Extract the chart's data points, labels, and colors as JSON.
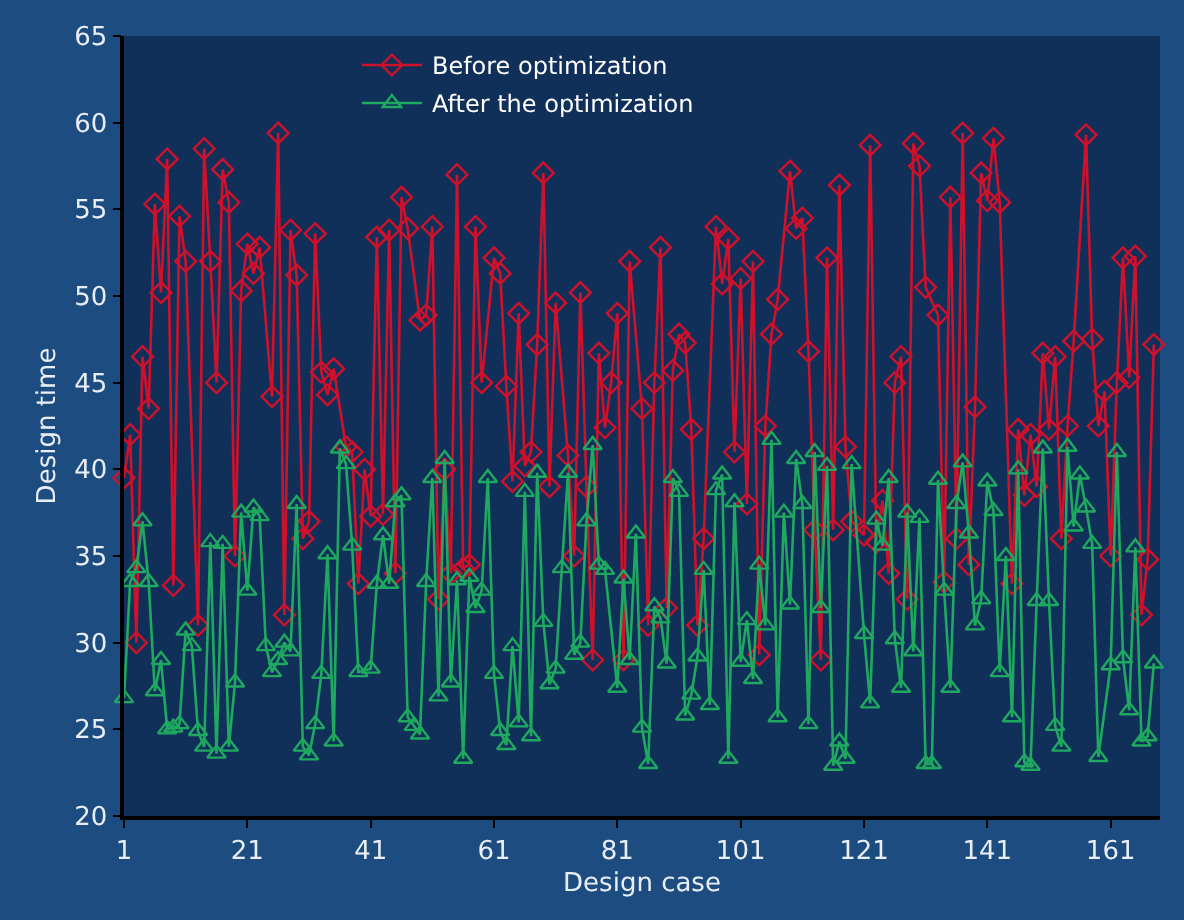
{
  "chart_data": {
    "type": "line",
    "xlabel": "Design case",
    "ylabel": "Design time",
    "xlim": [
      1,
      169
    ],
    "xticks": [
      1,
      21,
      41,
      61,
      81,
      101,
      121,
      141,
      161
    ],
    "ylim": [
      20,
      65
    ],
    "yticks": [
      20,
      25,
      30,
      35,
      40,
      45,
      50,
      55,
      60,
      65
    ],
    "grid": false,
    "legend": "top",
    "line_style": "solid",
    "series": [
      {
        "name": "Before optimization",
        "color": "#d0112b",
        "marker": "diamond",
        "x": [
          1,
          2,
          3,
          4,
          5,
          6,
          7,
          8,
          9,
          10,
          11,
          13,
          14,
          15,
          16,
          17,
          18,
          19,
          20,
          21,
          22,
          23,
          25,
          26,
          27,
          28,
          29,
          30,
          31,
          32,
          33,
          34,
          35,
          37,
          38,
          39,
          40,
          41,
          42,
          43,
          44,
          45,
          46,
          47,
          49,
          50,
          51,
          52,
          53,
          54,
          55,
          56,
          57,
          58,
          59,
          61,
          62,
          63,
          64,
          65,
          66,
          67,
          68,
          69,
          70,
          71,
          73,
          74,
          75,
          76,
          77,
          78,
          79,
          80,
          81,
          82,
          83,
          85,
          86,
          87,
          88,
          89,
          90,
          91,
          92,
          93,
          94,
          95,
          97,
          98,
          99,
          100,
          101,
          102,
          103,
          104,
          105,
          106,
          107,
          109,
          110,
          111,
          112,
          113,
          114,
          115,
          116,
          117,
          118,
          119,
          121,
          122,
          123,
          124,
          125,
          126,
          127,
          128,
          129,
          130,
          131,
          133,
          134,
          135,
          136,
          137,
          138,
          139,
          140,
          141,
          142,
          143,
          145,
          146,
          147,
          148,
          149,
          150,
          151,
          152,
          153,
          154,
          155,
          157,
          158,
          159,
          160,
          161,
          162,
          163,
          164,
          165,
          166,
          167,
          168
        ],
        "values": [
          39.5,
          42,
          30,
          46.5,
          43.5,
          55.3,
          50.2,
          57.9,
          33.3,
          54.6,
          52,
          31,
          58.5,
          52,
          45,
          57.3,
          55.4,
          35,
          50.3,
          53,
          51.3,
          52.8,
          44.2,
          59.4,
          31.6,
          53.8,
          51.2,
          36,
          37,
          53.6,
          45.6,
          44.3,
          45.8,
          41.3,
          41,
          33.4,
          40,
          37.3,
          53.4,
          37.4,
          53.8,
          34,
          55.7,
          53.9,
          48.6,
          48.9,
          54,
          32.5,
          40,
          34,
          57,
          34.3,
          34.5,
          54,
          45,
          52.2,
          51.3,
          44.8,
          39.3,
          49,
          40.2,
          41,
          47.2,
          57.1,
          39,
          49.6,
          40.8,
          35,
          50.2,
          39,
          29,
          46.7,
          42.4,
          45,
          49,
          29,
          52,
          43.5,
          31,
          45,
          52.8,
          32,
          45.7,
          47.8,
          47.3,
          42.3,
          31,
          36,
          54,
          50.7,
          53.3,
          41,
          51,
          38,
          52,
          29.3,
          42.5,
          47.8,
          49.8,
          57.2,
          53.9,
          54.5,
          46.8,
          36.5,
          29,
          52.2,
          36.5,
          56.4,
          41.3,
          37,
          36.2,
          58.7,
          35.8,
          38.2,
          34,
          45,
          46.5,
          32.5,
          58.8,
          57.5,
          50.5,
          48.9,
          33.5,
          55.7,
          36,
          59.4,
          34.5,
          43.6,
          57.1,
          55.5,
          59.1,
          55.4,
          33.4,
          42.3,
          38.5,
          42,
          39,
          46.7,
          42.3,
          46.5,
          36,
          42.5,
          47.4,
          59.3,
          47.5,
          42.5,
          44.5,
          35,
          45,
          52.2,
          45.3,
          52.3,
          31.6,
          34.8,
          47.2
        ]
      },
      {
        "name": "After the optimization",
        "color": "#1fa85f",
        "marker": "triangle",
        "x": [
          1,
          2,
          3,
          4,
          5,
          6,
          7,
          8,
          9,
          10,
          11,
          12,
          13,
          14,
          15,
          16,
          17,
          18,
          19,
          20,
          21,
          22,
          23,
          24,
          25,
          26,
          27,
          28,
          29,
          30,
          31,
          32,
          33,
          34,
          35,
          36,
          37,
          38,
          39,
          41,
          42,
          43,
          44,
          45,
          46,
          47,
          48,
          49,
          50,
          51,
          52,
          53,
          54,
          55,
          56,
          57,
          58,
          59,
          60,
          61,
          62,
          63,
          64,
          65,
          66,
          67,
          68,
          69,
          70,
          71,
          72,
          73,
          74,
          75,
          76,
          77,
          78,
          79,
          81,
          82,
          83,
          84,
          85,
          86,
          87,
          88,
          89,
          90,
          91,
          92,
          93,
          94,
          95,
          96,
          97,
          98,
          99,
          100,
          101,
          102,
          103,
          104,
          105,
          106,
          107,
          108,
          109,
          110,
          111,
          112,
          113,
          114,
          115,
          116,
          117,
          118,
          119,
          121,
          122,
          123,
          124,
          125,
          126,
          127,
          128,
          129,
          130,
          131,
          132,
          133,
          134,
          135,
          136,
          137,
          138,
          139,
          140,
          141,
          142,
          143,
          144,
          145,
          146,
          147,
          148,
          149,
          150,
          151,
          152,
          153,
          154,
          155,
          156,
          157,
          158,
          159,
          161,
          162,
          163,
          164,
          165,
          166,
          167,
          168
        ],
        "values": [
          26.8,
          33.5,
          34.3,
          37,
          33.5,
          27.2,
          29,
          25,
          25.1,
          25.3,
          30.7,
          29.8,
          24.9,
          24,
          35.8,
          23.6,
          35.7,
          24,
          27.7,
          37.5,
          33,
          37.8,
          37.3,
          29.8,
          28.3,
          29,
          30,
          29.5,
          38,
          24,
          23.5,
          25.3,
          28.2,
          35.1,
          24.3,
          41.2,
          40.3,
          35.6,
          28.3,
          28.5,
          33.4,
          36.2,
          33.4,
          38.1,
          38.5,
          25.7,
          25.2,
          24.7,
          33.5,
          39.5,
          26.9,
          40.6,
          27.7,
          33.6,
          23.3,
          33.8,
          32,
          33,
          39.5,
          28.2,
          24.9,
          24.1,
          29.8,
          25.4,
          38.7,
          24.6,
          39.8,
          31.2,
          27.6,
          28.5,
          34.3,
          39.8,
          29.3,
          30,
          37,
          41.4,
          34.5,
          34.2,
          27.4,
          33.7,
          29,
          36.3,
          25.1,
          23,
          32.1,
          31.4,
          28.8,
          39.5,
          38.7,
          25.8,
          27,
          29.2,
          34.2,
          26.4,
          38.8,
          39.7,
          23.3,
          38.1,
          28.9,
          31.3,
          27.9,
          34.5,
          31,
          41.7,
          25.7,
          37.5,
          32.2,
          40.6,
          38,
          25.3,
          41,
          32,
          40.2,
          22.9,
          24.3,
          23.3,
          40.3,
          30.5,
          26.5,
          37.1,
          35.6,
          39.5,
          30.2,
          27.4,
          37.5,
          29.5,
          37.2,
          23,
          23,
          39.4,
          33,
          27.4,
          38,
          40.4,
          36.3,
          31,
          32.5,
          39.3,
          37.6,
          28.3,
          35,
          25.7,
          40,
          23.1,
          22.9,
          32.4,
          41.2,
          32.4,
          25.2,
          24,
          41.3,
          36.7,
          39.7,
          37.8,
          35.7,
          23.4,
          28.7,
          41,
          29.1,
          26.1,
          35.5,
          24.3,
          24.6,
          28.8
        ]
      }
    ]
  }
}
